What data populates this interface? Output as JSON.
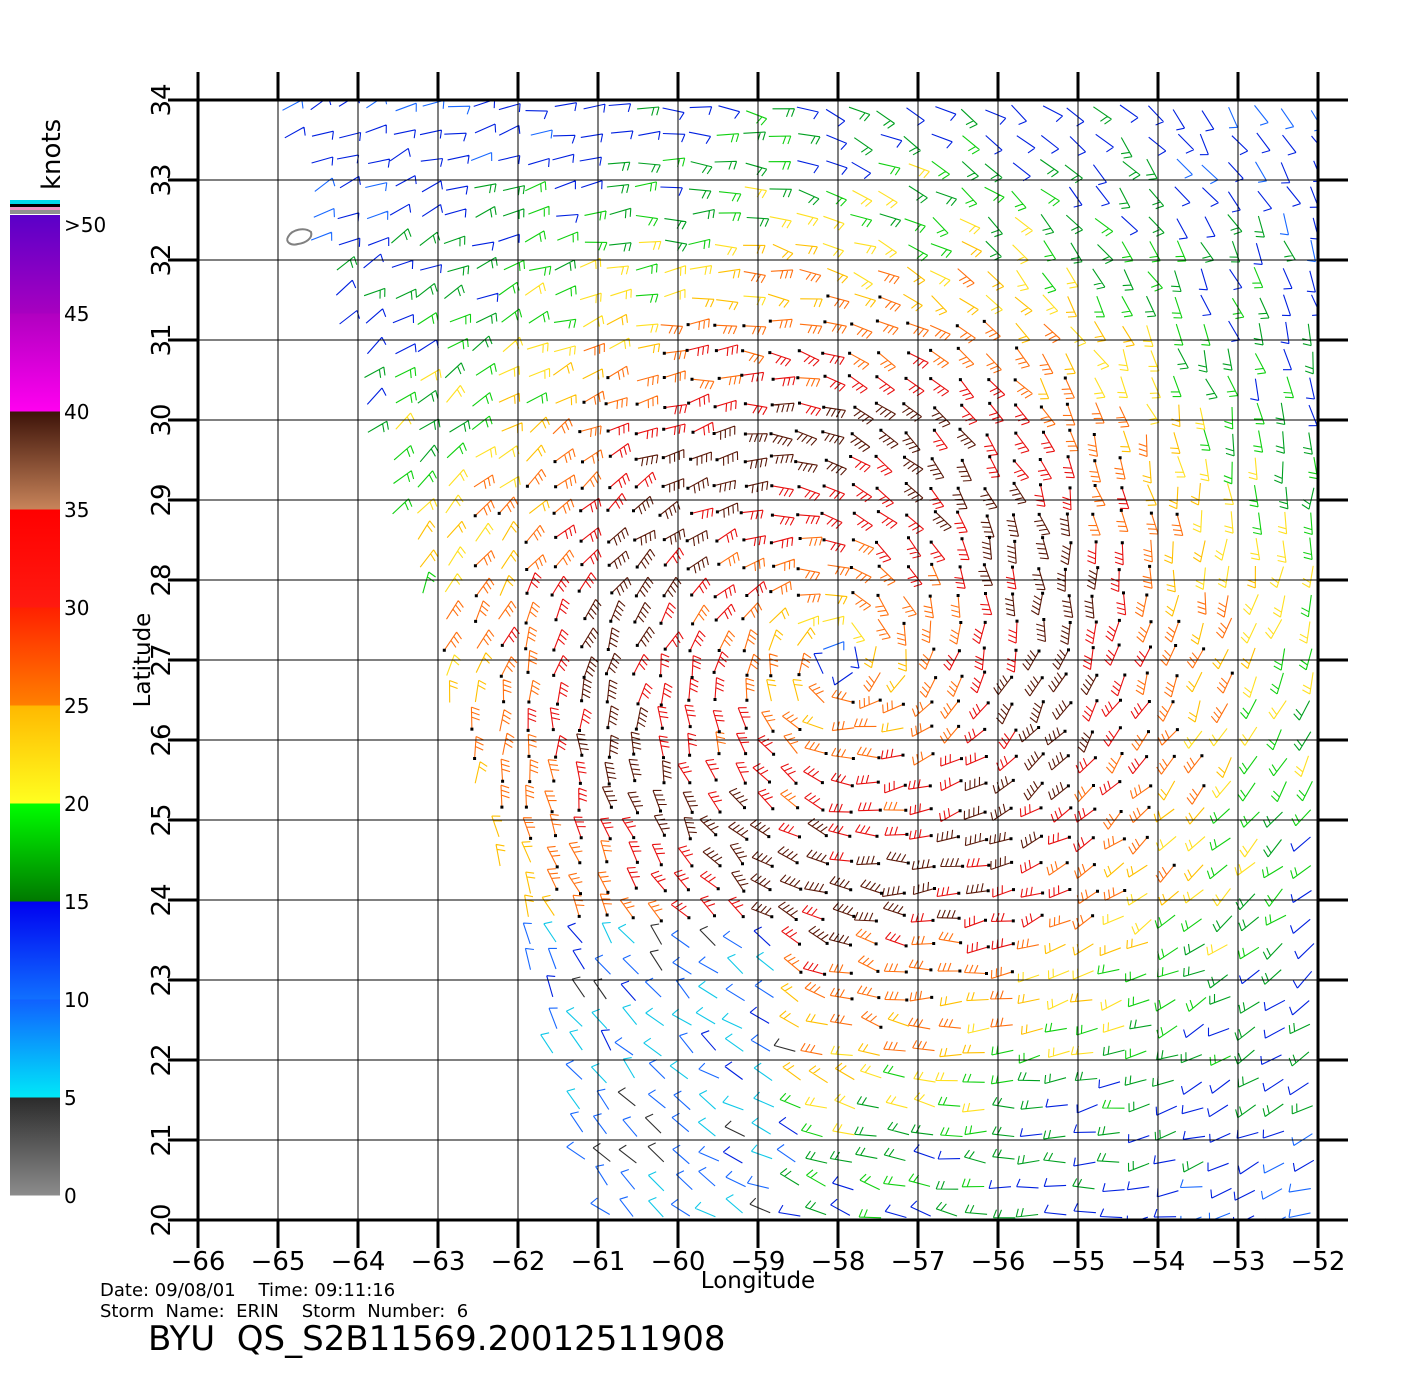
{
  "colorbar": {
    "unit": "knots",
    "labels": [
      "0",
      "5",
      "10",
      "15",
      "20",
      "25",
      "30",
      "35",
      "40",
      "45",
      ">50"
    ],
    "bands": [
      {
        "from": 0,
        "to": 5,
        "bottom": "#8c8c8c",
        "top": "#2a2a2a"
      },
      {
        "from": 5,
        "to": 10,
        "bottom": "#00e8f8",
        "top": "#1060ff"
      },
      {
        "from": 10,
        "to": 15,
        "bottom": "#1070ff",
        "top": "#0000f0"
      },
      {
        "from": 15,
        "to": 20,
        "bottom": "#007800",
        "top": "#00ff00"
      },
      {
        "from": 20,
        "to": 25,
        "bottom": "#ffff20",
        "top": "#ffb800"
      },
      {
        "from": 25,
        "to": 30,
        "bottom": "#ff8000",
        "top": "#ff2000"
      },
      {
        "from": 30,
        "to": 35,
        "bottom": "#ff1a10",
        "top": "#ff0000"
      },
      {
        "from": 35,
        "to": 40,
        "bottom": "#c8845a",
        "top": "#3c1208"
      },
      {
        "from": 40,
        "to": 45,
        "bottom": "#ff00f0",
        "top": "#b000c0"
      },
      {
        "from": 45,
        "to": 50,
        "bottom": "#a800c0",
        "top": "#5a00c8"
      }
    ]
  },
  "map": {
    "xlabel": "Longitude",
    "ylabel": "Latitude",
    "lon_range": [
      -66,
      -52
    ],
    "lat_range": [
      20,
      34
    ],
    "lon_ticks": [
      "−66",
      "−65",
      "−64",
      "−63",
      "−62",
      "−61",
      "−60",
      "−59",
      "−58",
      "−57",
      "−56",
      "−55",
      "−54",
      "−53",
      "−52"
    ],
    "lat_ticks": [
      "20",
      "21",
      "22",
      "23",
      "24",
      "25",
      "26",
      "27",
      "28",
      "29",
      "30",
      "31",
      "32",
      "33",
      "34"
    ],
    "swath": {
      "west_edge": [
        [
          -65.1,
          34
        ],
        [
          -61.0,
          20
        ]
      ],
      "east_edge": [
        [
          -52.1,
          34
        ],
        [
          -52.1,
          20
        ]
      ]
    },
    "storm_center": {
      "lon": -58.0,
      "lat": 27.0
    },
    "island": {
      "lon": -64.7,
      "lat": 32.3
    }
  },
  "footer": {
    "line1": "Date: 09/08/01    Time: 09:11:16",
    "line2": "Storm  Name:  ERIN    Storm  Number:  6",
    "product": "BYU  QS_S2B11569.20012511908"
  }
}
